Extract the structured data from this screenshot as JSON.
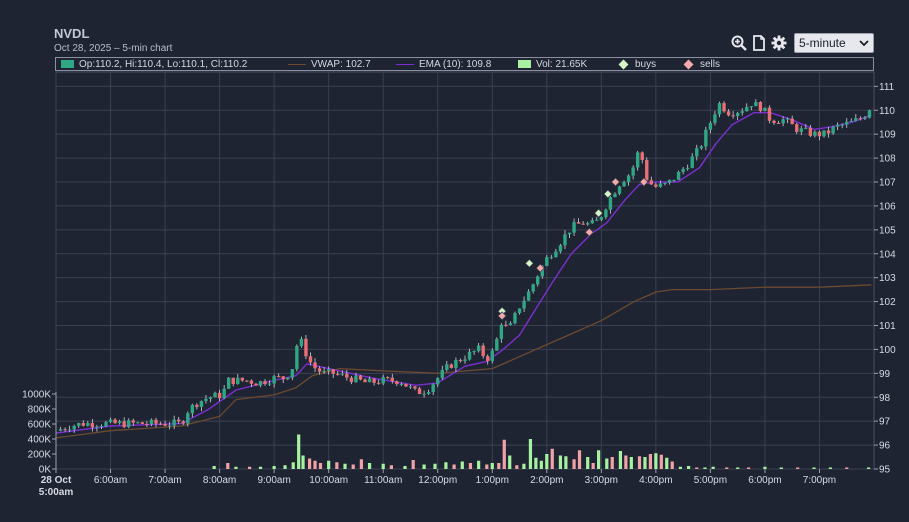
{
  "header": {
    "title": "NVDL",
    "subtitle": "Oct 28, 2025 – 5-min chart"
  },
  "toolbar": {
    "icons": [
      "zoom-in-icon",
      "document-icon",
      "gear-icon"
    ],
    "interval": "5-minute"
  },
  "legend": {
    "ohlc": "Op:110.2, Hi:110.4, Lo:110.1, Cl:110.2",
    "vwap": "VWAP: 102.7",
    "ema": "EMA (10): 109.8",
    "vol": "Vol: 21.65K",
    "buys": "buys",
    "sells": "sells"
  },
  "colors": {
    "up": "#2fa785",
    "down": "#e96f75",
    "vol_up": "#a6f2a0",
    "vol_down": "#f0a2a6",
    "ema": "#7b2fd0",
    "vwap": "#6b4a30",
    "buy_marker": "#d6f5c8",
    "sell_marker": "#f4aaa8",
    "grid": "#3a4052"
  },
  "chart_data": {
    "type": "candlestick",
    "title": "NVDL",
    "subtitle": "Oct 28, 2025 – 5-min chart",
    "x_ticks": [
      "28 Oct 5:00am",
      "6:00am",
      "7:00am",
      "8:00am",
      "9:00am",
      "10:00am",
      "11:00am",
      "12:00pm",
      "1:00pm",
      "2:00pm",
      "3:00pm",
      "4:00pm",
      "5:00pm",
      "6:00pm",
      "7:00pm"
    ],
    "x_tick_hours": [
      5,
      6,
      7,
      8,
      9,
      10,
      11,
      12,
      13,
      14,
      15,
      16,
      17,
      18,
      19
    ],
    "x_range_hours": [
      5.0,
      20.0
    ],
    "price_axis": {
      "ticks": [
        95,
        96,
        97,
        98,
        99,
        100,
        101,
        102,
        103,
        104,
        105,
        106,
        107,
        108,
        109,
        110,
        111
      ],
      "range": [
        95,
        111.6
      ],
      "side": "right"
    },
    "volume_axis": {
      "ticks": [
        "0K",
        "200K",
        "400K",
        "600K",
        "800K",
        "1000K"
      ],
      "tick_values": [
        0,
        200,
        400,
        600,
        800,
        1000
      ],
      "range": [
        0,
        1000
      ],
      "side": "left",
      "unit": "K"
    },
    "price_series": [
      {
        "t": 5.0,
        "p": 96.6
      },
      {
        "t": 5.25,
        "p": 96.8
      },
      {
        "t": 5.5,
        "p": 96.9
      },
      {
        "t": 5.8,
        "p": 96.9
      },
      {
        "t": 6.2,
        "p": 96.9
      },
      {
        "t": 6.6,
        "p": 96.9
      },
      {
        "t": 7.0,
        "p": 96.9
      },
      {
        "t": 7.3,
        "p": 96.9
      },
      {
        "t": 7.4,
        "p": 97.4
      },
      {
        "t": 7.6,
        "p": 97.8
      },
      {
        "t": 7.8,
        "p": 98.0
      },
      {
        "t": 8.05,
        "p": 98.1
      },
      {
        "t": 8.15,
        "p": 98.7
      },
      {
        "t": 8.25,
        "p": 98.7
      },
      {
        "t": 8.5,
        "p": 98.7
      },
      {
        "t": 8.7,
        "p": 98.6
      },
      {
        "t": 9.0,
        "p": 98.8
      },
      {
        "t": 9.2,
        "p": 98.8
      },
      {
        "t": 9.35,
        "p": 99.3
      },
      {
        "t": 9.45,
        "p": 100.6
      },
      {
        "t": 9.55,
        "p": 100.0
      },
      {
        "t": 9.7,
        "p": 99.3
      },
      {
        "t": 9.9,
        "p": 99.0
      },
      {
        "t": 10.1,
        "p": 99.0
      },
      {
        "t": 10.4,
        "p": 98.8
      },
      {
        "t": 10.7,
        "p": 98.6
      },
      {
        "t": 11.0,
        "p": 98.7
      },
      {
        "t": 11.3,
        "p": 98.7
      },
      {
        "t": 11.6,
        "p": 98.2
      },
      {
        "t": 11.8,
        "p": 98.3
      },
      {
        "t": 12.0,
        "p": 98.8
      },
      {
        "t": 12.2,
        "p": 99.3
      },
      {
        "t": 12.5,
        "p": 99.7
      },
      {
        "t": 12.75,
        "p": 100.0
      },
      {
        "t": 12.9,
        "p": 99.6
      },
      {
        "t": 13.05,
        "p": 100.0
      },
      {
        "t": 13.15,
        "p": 101.2
      },
      {
        "t": 13.3,
        "p": 100.8
      },
      {
        "t": 13.5,
        "p": 101.8
      },
      {
        "t": 13.7,
        "p": 102.5
      },
      {
        "t": 13.85,
        "p": 103.2
      },
      {
        "t": 14.0,
        "p": 103.8
      },
      {
        "t": 14.25,
        "p": 104.5
      },
      {
        "t": 14.45,
        "p": 105.1
      },
      {
        "t": 14.65,
        "p": 105.3
      },
      {
        "t": 14.8,
        "p": 105.2
      },
      {
        "t": 14.95,
        "p": 105.4
      },
      {
        "t": 15.15,
        "p": 106.3
      },
      {
        "t": 15.35,
        "p": 107.0
      },
      {
        "t": 15.55,
        "p": 107.4
      },
      {
        "t": 15.7,
        "p": 108.4
      },
      {
        "t": 15.85,
        "p": 107.0
      },
      {
        "t": 16.0,
        "p": 106.8
      },
      {
        "t": 16.2,
        "p": 106.9
      },
      {
        "t": 16.4,
        "p": 107.3
      },
      {
        "t": 16.6,
        "p": 107.8
      },
      {
        "t": 16.8,
        "p": 108.4
      },
      {
        "t": 17.0,
        "p": 109.5
      },
      {
        "t": 17.15,
        "p": 110.3
      },
      {
        "t": 17.35,
        "p": 109.9
      },
      {
        "t": 17.55,
        "p": 110.0
      },
      {
        "t": 17.75,
        "p": 110.3
      },
      {
        "t": 17.95,
        "p": 110.1
      },
      {
        "t": 18.1,
        "p": 109.6
      },
      {
        "t": 18.35,
        "p": 109.6
      },
      {
        "t": 18.6,
        "p": 109.2
      },
      {
        "t": 18.9,
        "p": 109.0
      },
      {
        "t": 19.1,
        "p": 109.0
      },
      {
        "t": 19.3,
        "p": 109.3
      },
      {
        "t": 19.6,
        "p": 109.5
      },
      {
        "t": 19.8,
        "p": 109.7
      },
      {
        "t": 19.95,
        "p": 110.2
      }
    ],
    "ema_series": [
      {
        "t": 5.0,
        "p": 96.5
      },
      {
        "t": 6.0,
        "p": 96.8
      },
      {
        "t": 7.3,
        "p": 96.9
      },
      {
        "t": 7.8,
        "p": 97.5
      },
      {
        "t": 8.3,
        "p": 98.3
      },
      {
        "t": 9.0,
        "p": 98.7
      },
      {
        "t": 9.4,
        "p": 98.9
      },
      {
        "t": 9.6,
        "p": 99.4
      },
      {
        "t": 10.0,
        "p": 99.2
      },
      {
        "t": 10.8,
        "p": 98.8
      },
      {
        "t": 11.6,
        "p": 98.5
      },
      {
        "t": 12.0,
        "p": 98.6
      },
      {
        "t": 12.5,
        "p": 99.3
      },
      {
        "t": 12.9,
        "p": 99.5
      },
      {
        "t": 13.2,
        "p": 100.0
      },
      {
        "t": 13.5,
        "p": 100.6
      },
      {
        "t": 13.8,
        "p": 101.7
      },
      {
        "t": 14.1,
        "p": 102.8
      },
      {
        "t": 14.45,
        "p": 104.0
      },
      {
        "t": 14.8,
        "p": 104.8
      },
      {
        "t": 15.1,
        "p": 105.3
      },
      {
        "t": 15.45,
        "p": 106.3
      },
      {
        "t": 15.7,
        "p": 106.9
      },
      {
        "t": 16.0,
        "p": 107.0
      },
      {
        "t": 16.4,
        "p": 107.0
      },
      {
        "t": 16.8,
        "p": 107.6
      },
      {
        "t": 17.1,
        "p": 108.6
      },
      {
        "t": 17.4,
        "p": 109.4
      },
      {
        "t": 17.8,
        "p": 109.9
      },
      {
        "t": 18.1,
        "p": 109.9
      },
      {
        "t": 18.5,
        "p": 109.6
      },
      {
        "t": 18.9,
        "p": 109.2
      },
      {
        "t": 19.2,
        "p": 109.3
      },
      {
        "t": 19.6,
        "p": 109.5
      },
      {
        "t": 19.95,
        "p": 109.8
      }
    ],
    "vwap_series": [
      {
        "t": 5.0,
        "p": 96.3
      },
      {
        "t": 6.0,
        "p": 96.6
      },
      {
        "t": 7.3,
        "p": 96.8
      },
      {
        "t": 8.0,
        "p": 97.2
      },
      {
        "t": 8.3,
        "p": 97.9
      },
      {
        "t": 9.0,
        "p": 98.1
      },
      {
        "t": 9.4,
        "p": 98.4
      },
      {
        "t": 9.7,
        "p": 98.9
      },
      {
        "t": 10.2,
        "p": 99.2
      },
      {
        "t": 11.0,
        "p": 99.1
      },
      {
        "t": 12.0,
        "p": 99.0
      },
      {
        "t": 13.0,
        "p": 99.2
      },
      {
        "t": 13.6,
        "p": 99.8
      },
      {
        "t": 14.2,
        "p": 100.4
      },
      {
        "t": 15.0,
        "p": 101.2
      },
      {
        "t": 15.6,
        "p": 102.0
      },
      {
        "t": 16.0,
        "p": 102.4
      },
      {
        "t": 16.3,
        "p": 102.5
      },
      {
        "t": 17.0,
        "p": 102.5
      },
      {
        "t": 18.0,
        "p": 102.6
      },
      {
        "t": 19.0,
        "p": 102.6
      },
      {
        "t": 19.95,
        "p": 102.7
      }
    ],
    "volume_bars": [
      {
        "t": 7.9,
        "v": 40,
        "up": true
      },
      {
        "t": 8.15,
        "v": 80,
        "up": false
      },
      {
        "t": 8.3,
        "v": 30,
        "up": true
      },
      {
        "t": 8.55,
        "v": 30,
        "up": false
      },
      {
        "t": 8.75,
        "v": 30,
        "up": true
      },
      {
        "t": 9.0,
        "v": 40,
        "up": true
      },
      {
        "t": 9.2,
        "v": 50,
        "up": true
      },
      {
        "t": 9.35,
        "v": 90,
        "up": true
      },
      {
        "t": 9.45,
        "v": 460,
        "up": true
      },
      {
        "t": 9.53,
        "v": 180,
        "up": true
      },
      {
        "t": 9.65,
        "v": 140,
        "up": false
      },
      {
        "t": 9.75,
        "v": 110,
        "up": false
      },
      {
        "t": 9.85,
        "v": 80,
        "up": false
      },
      {
        "t": 10.0,
        "v": 110,
        "up": true
      },
      {
        "t": 10.15,
        "v": 90,
        "up": false
      },
      {
        "t": 10.3,
        "v": 70,
        "up": true
      },
      {
        "t": 10.45,
        "v": 60,
        "up": false
      },
      {
        "t": 10.6,
        "v": 130,
        "up": false
      },
      {
        "t": 10.75,
        "v": 80,
        "up": true
      },
      {
        "t": 11.0,
        "v": 70,
        "up": true
      },
      {
        "t": 11.15,
        "v": 50,
        "up": false
      },
      {
        "t": 11.4,
        "v": 40,
        "up": true
      },
      {
        "t": 11.55,
        "v": 120,
        "up": false
      },
      {
        "t": 11.75,
        "v": 60,
        "up": true
      },
      {
        "t": 11.95,
        "v": 70,
        "up": true
      },
      {
        "t": 12.15,
        "v": 90,
        "up": true
      },
      {
        "t": 12.3,
        "v": 60,
        "up": false
      },
      {
        "t": 12.45,
        "v": 100,
        "up": true
      },
      {
        "t": 12.6,
        "v": 80,
        "up": false
      },
      {
        "t": 12.75,
        "v": 110,
        "up": true
      },
      {
        "t": 12.9,
        "v": 60,
        "up": false
      },
      {
        "t": 13.0,
        "v": 80,
        "up": true
      },
      {
        "t": 13.12,
        "v": 80,
        "up": false
      },
      {
        "t": 13.22,
        "v": 390,
        "up": false
      },
      {
        "t": 13.32,
        "v": 180,
        "up": true
      },
      {
        "t": 13.45,
        "v": 50,
        "up": false
      },
      {
        "t": 13.58,
        "v": 70,
        "up": true
      },
      {
        "t": 13.7,
        "v": 400,
        "up": true
      },
      {
        "t": 13.8,
        "v": 150,
        "up": true
      },
      {
        "t": 13.9,
        "v": 110,
        "up": true
      },
      {
        "t": 14.0,
        "v": 200,
        "up": true
      },
      {
        "t": 14.1,
        "v": 270,
        "up": false
      },
      {
        "t": 14.25,
        "v": 180,
        "up": true
      },
      {
        "t": 14.35,
        "v": 170,
        "up": true
      },
      {
        "t": 14.5,
        "v": 130,
        "up": false
      },
      {
        "t": 14.6,
        "v": 250,
        "up": false
      },
      {
        "t": 14.75,
        "v": 160,
        "up": true
      },
      {
        "t": 14.85,
        "v": 80,
        "up": false
      },
      {
        "t": 14.95,
        "v": 250,
        "up": true
      },
      {
        "t": 15.1,
        "v": 140,
        "up": true
      },
      {
        "t": 15.2,
        "v": 160,
        "up": false
      },
      {
        "t": 15.35,
        "v": 240,
        "up": true
      },
      {
        "t": 15.45,
        "v": 180,
        "up": false
      },
      {
        "t": 15.55,
        "v": 160,
        "up": true
      },
      {
        "t": 15.7,
        "v": 170,
        "up": false
      },
      {
        "t": 15.8,
        "v": 160,
        "up": true
      },
      {
        "t": 15.9,
        "v": 200,
        "up": false
      },
      {
        "t": 16.0,
        "v": 210,
        "up": true
      },
      {
        "t": 16.1,
        "v": 190,
        "up": false
      },
      {
        "t": 16.2,
        "v": 150,
        "up": true
      },
      {
        "t": 16.3,
        "v": 100,
        "up": false
      },
      {
        "t": 16.45,
        "v": 30,
        "up": true
      },
      {
        "t": 16.6,
        "v": 40,
        "up": true
      },
      {
        "t": 16.75,
        "v": 20,
        "up": false
      },
      {
        "t": 16.9,
        "v": 20,
        "up": true
      },
      {
        "t": 17.05,
        "v": 30,
        "up": true
      },
      {
        "t": 17.3,
        "v": 20,
        "up": false
      },
      {
        "t": 17.5,
        "v": 20,
        "up": true
      },
      {
        "t": 17.7,
        "v": 20,
        "up": false
      },
      {
        "t": 18.0,
        "v": 30,
        "up": true
      },
      {
        "t": 18.3,
        "v": 20,
        "up": true
      },
      {
        "t": 18.6,
        "v": 20,
        "up": false
      },
      {
        "t": 18.9,
        "v": 20,
        "up": true
      },
      {
        "t": 19.2,
        "v": 20,
        "up": true
      },
      {
        "t": 19.5,
        "v": 20,
        "up": false
      },
      {
        "t": 19.9,
        "v": 20,
        "up": true
      }
    ],
    "buys": [
      {
        "t": 13.18,
        "p": 101.6
      },
      {
        "t": 13.68,
        "p": 103.6
      },
      {
        "t": 14.95,
        "p": 105.7
      },
      {
        "t": 15.12,
        "p": 106.5
      }
    ],
    "sells": [
      {
        "t": 13.18,
        "p": 101.4
      },
      {
        "t": 13.88,
        "p": 103.4
      },
      {
        "t": 14.78,
        "p": 104.9
      },
      {
        "t": 15.26,
        "p": 107.0
      },
      {
        "t": 15.78,
        "p": 107.0
      }
    ],
    "legend": [
      "Op:110.2, Hi:110.4, Lo:110.1, Cl:110.2",
      "VWAP: 102.7",
      "EMA (10): 109.8",
      "Vol: 21.65K",
      "buys",
      "sells"
    ],
    "grid": true
  }
}
